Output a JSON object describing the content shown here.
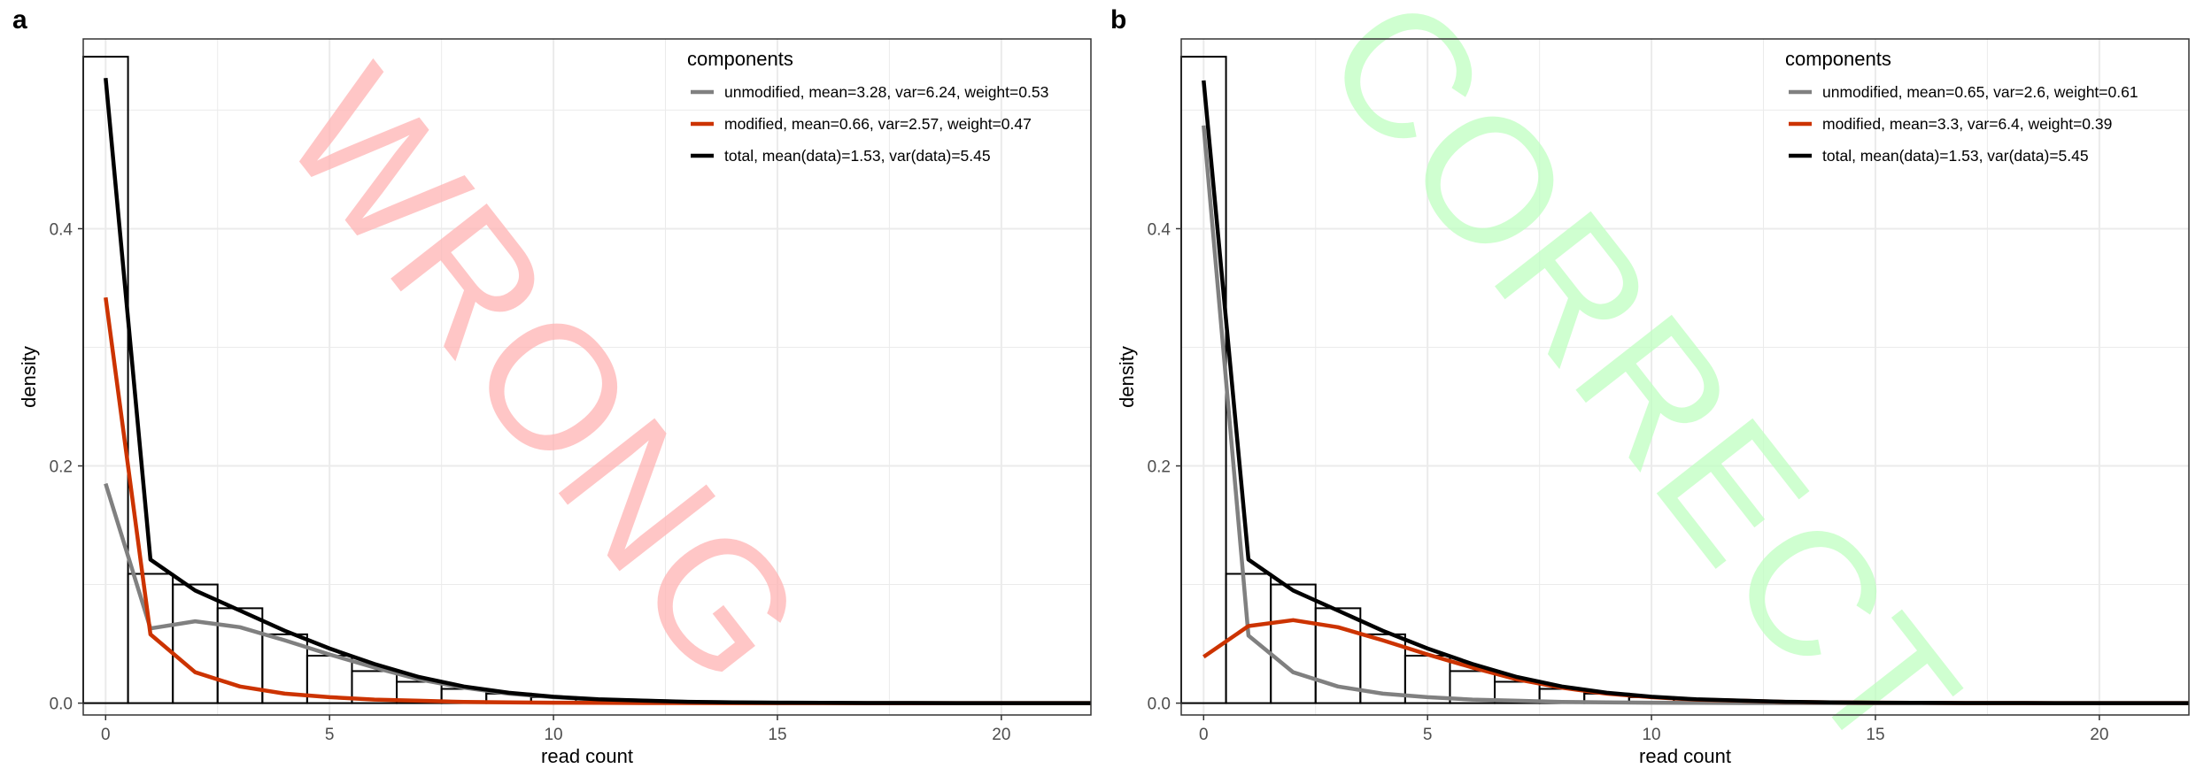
{
  "chart_data": [
    {
      "panel_label": "a",
      "type": "line",
      "watermark": "WRONG",
      "watermark_color": "#ffb3b3",
      "xlabel": "read count",
      "ylabel": "density",
      "xlim": [
        -0.5,
        22
      ],
      "ylim": [
        -0.01,
        0.56
      ],
      "x_ticks": [
        0,
        5,
        10,
        15,
        20
      ],
      "y_ticks": [
        0.0,
        0.2,
        0.4
      ],
      "grid": true,
      "legend_title": "components",
      "legend_position": "top-right",
      "histogram": {
        "bin_width": 1,
        "x": [
          0,
          1,
          2,
          3,
          4,
          5,
          6,
          7,
          8,
          9,
          10,
          11,
          12,
          13,
          14,
          15,
          16,
          17,
          18,
          19,
          20,
          21
        ],
        "values": [
          0.545,
          0.109,
          0.1,
          0.08,
          0.058,
          0.04,
          0.027,
          0.018,
          0.012,
          0.008,
          0.005,
          0.003,
          0.002,
          0.0015,
          0.001,
          0.0007,
          0.0005,
          0.0003,
          0.0002,
          0.0001,
          0.0001,
          0.0
        ]
      },
      "series": [
        {
          "name": "unmodified, mean=3.28, var=6.24, weight=0.53",
          "color": "#808080",
          "x": [
            0,
            1,
            2,
            3,
            4,
            5,
            6,
            7,
            8,
            9,
            10,
            11,
            12,
            13,
            14,
            15,
            16,
            17,
            18,
            19,
            20,
            21,
            22
          ],
          "values": [
            0.185,
            0.063,
            0.069,
            0.064,
            0.053,
            0.041,
            0.03,
            0.02,
            0.013,
            0.008,
            0.005,
            0.003,
            0.002,
            0.001,
            0.0007,
            0.0004,
            0.0002,
            0.0001,
            0.0001,
            0.0,
            0.0,
            0.0,
            0.0
          ]
        },
        {
          "name": "modified, mean=0.66, var=2.57, weight=0.47",
          "color": "#cc3300",
          "x": [
            0,
            1,
            2,
            3,
            4,
            5,
            6,
            7,
            8,
            9,
            10,
            11,
            12,
            13,
            14,
            15,
            16,
            17,
            18,
            19,
            20,
            21,
            22
          ],
          "values": [
            0.342,
            0.058,
            0.026,
            0.014,
            0.008,
            0.005,
            0.003,
            0.002,
            0.001,
            0.0007,
            0.0004,
            0.0002,
            0.0001,
            0.0001,
            0.0,
            0.0,
            0.0,
            0.0,
            0.0,
            0.0,
            0.0,
            0.0,
            0.0
          ]
        },
        {
          "name": "total, mean(data)=1.53, var(data)=5.45",
          "color": "#000000",
          "x": [
            0,
            1,
            2,
            3,
            4,
            5,
            6,
            7,
            8,
            9,
            10,
            11,
            12,
            13,
            14,
            15,
            16,
            17,
            18,
            19,
            20,
            21,
            22
          ],
          "values": [
            0.527,
            0.121,
            0.095,
            0.078,
            0.061,
            0.046,
            0.033,
            0.022,
            0.014,
            0.0087,
            0.0054,
            0.0032,
            0.0021,
            0.0011,
            0.0007,
            0.0004,
            0.0002,
            0.0001,
            0.0001,
            0.0,
            0.0,
            0.0,
            0.0
          ]
        }
      ]
    },
    {
      "panel_label": "b",
      "type": "line",
      "watermark": "CORRECT",
      "watermark_color": "#bfffc0",
      "xlabel": "read count",
      "ylabel": "density",
      "xlim": [
        -0.5,
        22
      ],
      "ylim": [
        -0.01,
        0.56
      ],
      "x_ticks": [
        0,
        5,
        10,
        15,
        20
      ],
      "y_ticks": [
        0.0,
        0.2,
        0.4
      ],
      "grid": true,
      "legend_title": "components",
      "legend_position": "top-right",
      "histogram": {
        "bin_width": 1,
        "x": [
          0,
          1,
          2,
          3,
          4,
          5,
          6,
          7,
          8,
          9,
          10,
          11,
          12,
          13,
          14,
          15,
          16,
          17,
          18,
          19,
          20,
          21
        ],
        "values": [
          0.545,
          0.109,
          0.1,
          0.08,
          0.058,
          0.04,
          0.027,
          0.018,
          0.012,
          0.008,
          0.005,
          0.003,
          0.002,
          0.0015,
          0.001,
          0.0007,
          0.0005,
          0.0003,
          0.0002,
          0.0001,
          0.0001,
          0.0
        ]
      },
      "series": [
        {
          "name": "unmodified, mean=0.65, var=2.6, weight=0.61",
          "color": "#808080",
          "x": [
            0,
            1,
            2,
            3,
            4,
            5,
            6,
            7,
            8,
            9,
            10,
            11,
            12,
            13,
            14,
            15,
            16,
            17,
            18,
            19,
            20,
            21,
            22
          ],
          "values": [
            0.487,
            0.057,
            0.026,
            0.014,
            0.008,
            0.005,
            0.003,
            0.002,
            0.001,
            0.0007,
            0.0004,
            0.0002,
            0.0001,
            0.0001,
            0.0,
            0.0,
            0.0,
            0.0,
            0.0,
            0.0,
            0.0,
            0.0,
            0.0
          ]
        },
        {
          "name": "modified, mean=3.3, var=6.4, weight=0.39",
          "color": "#cc3300",
          "x": [
            0,
            1,
            2,
            3,
            4,
            5,
            6,
            7,
            8,
            9,
            10,
            11,
            12,
            13,
            14,
            15,
            16,
            17,
            18,
            19,
            20,
            21,
            22
          ],
          "values": [
            0.039,
            0.065,
            0.07,
            0.064,
            0.053,
            0.041,
            0.03,
            0.02,
            0.013,
            0.008,
            0.005,
            0.003,
            0.002,
            0.001,
            0.0007,
            0.0004,
            0.0002,
            0.0001,
            0.0001,
            0.0,
            0.0,
            0.0,
            0.0
          ]
        },
        {
          "name": "total, mean(data)=1.53, var(data)=5.45",
          "color": "#000000",
          "x": [
            0,
            1,
            2,
            3,
            4,
            5,
            6,
            7,
            8,
            9,
            10,
            11,
            12,
            13,
            14,
            15,
            16,
            17,
            18,
            19,
            20,
            21,
            22
          ],
          "values": [
            0.525,
            0.121,
            0.095,
            0.078,
            0.061,
            0.046,
            0.033,
            0.022,
            0.014,
            0.0087,
            0.0054,
            0.0032,
            0.0021,
            0.0011,
            0.0007,
            0.0004,
            0.0002,
            0.0001,
            0.0001,
            0.0,
            0.0,
            0.0,
            0.0
          ]
        }
      ]
    }
  ]
}
